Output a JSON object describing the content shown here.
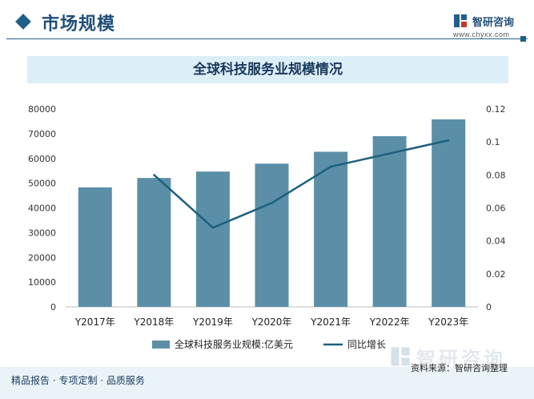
{
  "header": {
    "title": "市场规模",
    "logo_name": "智研咨询",
    "logo_url": "www.chyxx.com"
  },
  "chart_data": {
    "type": "bar",
    "title": "全球科技服务业规模情况",
    "categories": [
      "Y2017年",
      "Y2018年",
      "Y2019年",
      "Y2020年",
      "Y2021年",
      "Y2022年",
      "Y2023年"
    ],
    "series": [
      {
        "name": "全球科技服务业规模:亿美元",
        "type": "bar",
        "axis": "left",
        "color": "#5b8fa8",
        "values": [
          48300,
          52100,
          54700,
          57900,
          62700,
          69000,
          75800
        ]
      },
      {
        "name": "同比增长",
        "type": "line",
        "axis": "right",
        "color": "#1d5f7e",
        "values": [
          null,
          0.08,
          0.048,
          0.063,
          0.085,
          0.093,
          0.101
        ]
      }
    ],
    "y_left": {
      "min": 0,
      "max": 80000,
      "ticks": [
        "0",
        "10000",
        "20000",
        "30000",
        "40000",
        "50000",
        "60000",
        "70000",
        "80000"
      ]
    },
    "y_right": {
      "min": 0,
      "max": 0.12,
      "ticks": [
        "0",
        "0.02",
        "0.04",
        "0.06",
        "0.08",
        "0.1",
        "0.12"
      ]
    },
    "grid": false,
    "legend_position": "bottom"
  },
  "footer": {
    "left": "精品报告 · 专项定制 · 品质服务",
    "source": "资料来源：智研咨询整理",
    "watermark": "智研咨询"
  }
}
